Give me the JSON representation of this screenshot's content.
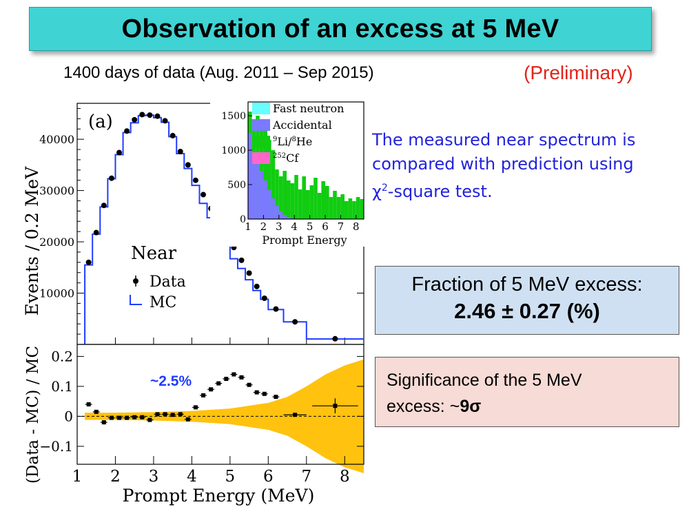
{
  "slide": {
    "title": "Observation of an excess at 5 MeV",
    "subtitle": "1400 days of data (Aug. 2011 – Sep 2015)",
    "preliminary": "(Preliminary)",
    "description_line1": "The measured near spectrum is",
    "description_line2": "compared with prediction using",
    "description_line3_prefix": "χ",
    "description_line3_sup": "2",
    "description_line3_suffix": "-square test.",
    "fraction_label": "Fraction of 5 MeV excess:",
    "fraction_value": "2.46 ± 0.27 (%)",
    "significance_line1": "Significance of the 5 MeV",
    "significance_line2_prefix": "excess:  ~",
    "significance_line2_value": "9σ"
  },
  "colors": {
    "title_bg": "#3fd3d3",
    "prelim": "#e0241b",
    "desc": "#2222dd",
    "mc_line": "#1f3cff",
    "band": "#ffc20e",
    "fast_neutron": "#66ffff",
    "accidental": "#7a7aff",
    "lihe": "#11cc11",
    "cf": "#ff66cc"
  },
  "chart_data": [
    {
      "type": "line",
      "panel_label": "(a)",
      "ylabel": "Events / 0.2 MeV",
      "xlim": [
        1,
        8.5
      ],
      "ylim": [
        0,
        47000
      ],
      "yticks": [
        10000,
        20000,
        30000,
        40000
      ],
      "ytick_labels": [
        "10000",
        "20000",
        "30000",
        "40000"
      ],
      "legend_title": "Near",
      "legend": [
        "Data",
        "MC"
      ],
      "mc_edges": [
        1.2,
        1.4,
        1.6,
        1.8,
        2.0,
        2.2,
        2.4,
        2.6,
        2.8,
        3.0,
        3.2,
        3.4,
        3.6,
        3.8,
        4.0,
        4.2,
        4.4,
        4.6,
        4.8,
        5.0,
        5.2,
        5.4,
        5.6,
        5.8,
        6.0,
        6.4,
        7.0,
        8.5
      ],
      "mc_values": [
        15500,
        21500,
        26800,
        32300,
        37000,
        41300,
        43200,
        44600,
        44700,
        44200,
        43300,
        40500,
        37200,
        34300,
        31000,
        27500,
        24700,
        21600,
        19200,
        16700,
        14800,
        12600,
        10500,
        8800,
        6800,
        4400,
        1050
      ],
      "data_x": [
        1.3,
        1.5,
        1.7,
        1.9,
        2.1,
        2.3,
        2.5,
        2.7,
        2.9,
        3.1,
        3.3,
        3.5,
        3.7,
        3.9,
        4.1,
        4.3,
        4.5,
        4.7,
        4.9,
        5.1,
        5.3,
        5.5,
        5.7,
        5.9,
        6.2,
        6.7,
        7.75
      ],
      "data_y": [
        16000,
        21800,
        27100,
        32400,
        37400,
        41600,
        43800,
        44800,
        44700,
        44500,
        43600,
        40700,
        37600,
        35000,
        32000,
        29200,
        26500,
        24000,
        21500,
        18900,
        16400,
        13900,
        11300,
        9000,
        6900,
        4400,
        1100
      ]
    },
    {
      "type": "bar",
      "xlabel": "Prompt Energy",
      "xlim": [
        1,
        8.5
      ],
      "ylim": [
        0,
        1700
      ],
      "xticks": [
        1,
        2,
        3,
        4,
        5,
        6,
        7,
        8
      ],
      "yticks": [
        0,
        500,
        1000,
        1500
      ],
      "legend": [
        "Fast neutron",
        "Accidental",
        "Li/He",
        "Cf"
      ],
      "legend_li_pre1": "9",
      "legend_li_mid": "Li/",
      "legend_li_pre2": "8",
      "legend_li_post": "He",
      "legend_cf_pre": "252",
      "legend_cf_post": "Cf",
      "bin_edges": [
        1.0,
        1.25,
        1.5,
        1.75,
        2.0,
        2.25,
        2.5,
        2.75,
        3.0,
        3.25,
        3.5,
        3.75,
        4.0,
        4.25,
        4.5,
        4.75,
        5.0,
        5.25,
        5.5,
        5.75,
        6.0,
        6.25,
        6.5,
        6.75,
        7.0,
        7.25,
        7.5,
        7.75,
        8.0,
        8.25,
        8.5
      ],
      "accidental": [
        1250,
        950,
        800,
        700,
        560,
        420,
        300,
        190,
        110,
        60,
        25,
        10,
        5,
        0,
        0,
        0,
        0,
        0,
        0,
        0,
        0,
        0,
        0,
        0,
        0,
        0,
        0,
        0,
        0,
        0
      ],
      "total": [
        1560,
        1450,
        1500,
        1280,
        1350,
        1150,
        1000,
        720,
        620,
        700,
        560,
        520,
        640,
        430,
        620,
        420,
        490,
        600,
        380,
        550,
        480,
        320,
        410,
        320,
        360,
        260,
        300,
        260,
        320,
        290
      ]
    },
    {
      "type": "scatter",
      "ylabel": "(Data - MC) / MC",
      "xlabel": "Prompt Energy (MeV)",
      "xlim": [
        1,
        8.5
      ],
      "ylim": [
        -0.16,
        0.24
      ],
      "xticks": [
        1,
        2,
        3,
        4,
        5,
        6,
        7,
        8
      ],
      "yticks": [
        -0.1,
        0,
        0.1,
        0.2
      ],
      "ytick_labels": [
        "−0.1",
        "0",
        "0.1",
        "0.2"
      ],
      "annotation": "~2.5%",
      "x": [
        1.3,
        1.5,
        1.7,
        1.9,
        2.1,
        2.3,
        2.5,
        2.7,
        2.9,
        3.1,
        3.3,
        3.5,
        3.7,
        3.9,
        4.1,
        4.3,
        4.5,
        4.7,
        4.9,
        5.1,
        5.3,
        5.5,
        5.7,
        5.9,
        6.2,
        6.7,
        7.75
      ],
      "y": [
        0.04,
        0.015,
        -0.02,
        -0.005,
        -0.005,
        -0.005,
        -0.003,
        -0.003,
        -0.012,
        0.007,
        0.007,
        0.005,
        0.007,
        -0.01,
        0.03,
        0.07,
        0.09,
        0.11,
        0.125,
        0.14,
        0.13,
        0.105,
        0.08,
        0.075,
        0.065,
        0.005,
        0.035
      ],
      "band_x": [
        1.2,
        2,
        3,
        4,
        5,
        6,
        6.5,
        7,
        7.5,
        8,
        8.5
      ],
      "band_half": [
        0.012,
        0.012,
        0.014,
        0.018,
        0.026,
        0.045,
        0.065,
        0.1,
        0.14,
        0.17,
        0.19
      ]
    }
  ]
}
